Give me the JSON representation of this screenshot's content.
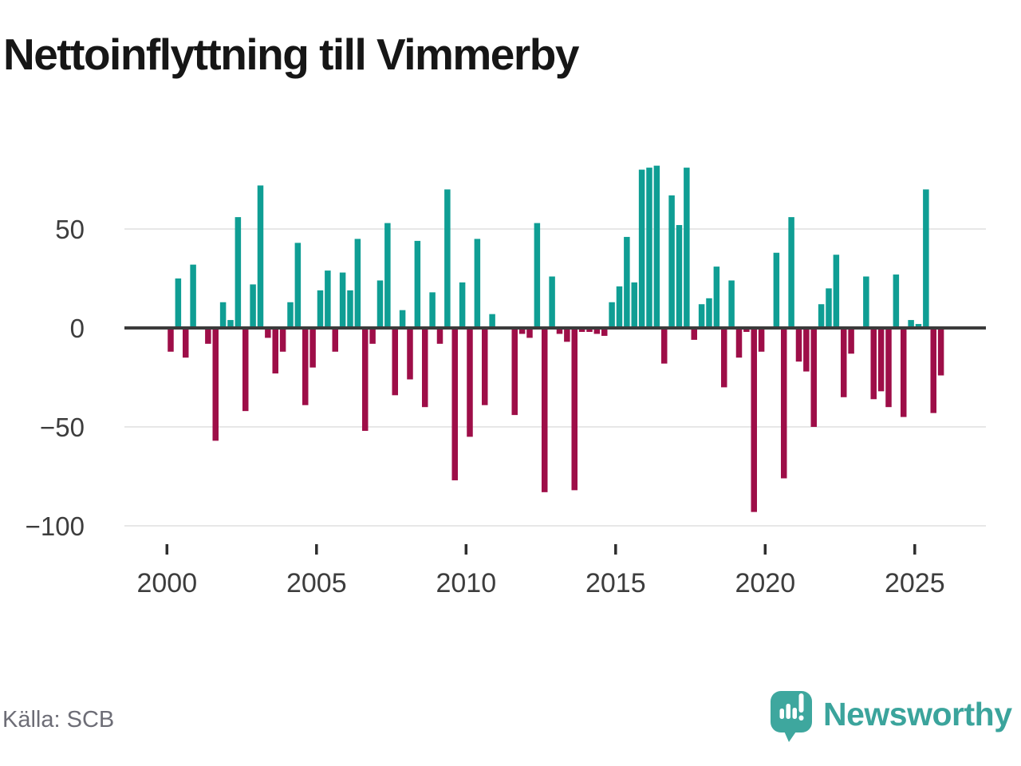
{
  "title": "Nettoinflyttning till Vimmerby",
  "source": "Källa: SCB",
  "branding": {
    "wordmark": "Newsworthy"
  },
  "colors": {
    "positive": "#0F9E94",
    "negative": "#9E0E48",
    "grid": "#E7E7E7",
    "zero_line": "#3B3B3B",
    "tick": "#2E2E2E",
    "axis_text": "#3D3D3D",
    "title_text": "#161616",
    "muted_text": "#6D6D76",
    "logo": "#3EA79E"
  },
  "chart_data": {
    "type": "bar",
    "title": "Nettoinflyttning till Vimmerby",
    "frequency": "quarterly",
    "start": "2000 Q1",
    "end": "2025 Q4",
    "x_ticks": [
      2000,
      2005,
      2010,
      2015,
      2020,
      2025
    ],
    "x_tick_labels": [
      "2000",
      "2005",
      "2010",
      "2015",
      "2020",
      "2025"
    ],
    "y_ticks": [
      50,
      0,
      -50,
      -100
    ],
    "y_tick_labels": [
      "50",
      "0",
      "−50",
      "−100"
    ],
    "ylim": [
      -110,
      90
    ],
    "grid": true,
    "legend_position": "none",
    "series": [
      {
        "name": "Nettoinflyttning",
        "values": [
          -12,
          25,
          -15,
          32,
          0,
          -8,
          -57,
          13,
          4,
          56,
          -42,
          22,
          72,
          -5,
          -23,
          -12,
          13,
          43,
          -39,
          -20,
          19,
          29,
          -12,
          28,
          19,
          45,
          -52,
          -8,
          24,
          53,
          -34,
          9,
          -26,
          44,
          -40,
          18,
          -8,
          70,
          -77,
          23,
          -55,
          45,
          -39,
          7,
          0,
          0,
          -44,
          -3,
          -5,
          53,
          -83,
          26,
          -3,
          -7,
          -82,
          -2,
          -2,
          -3,
          -4,
          13,
          21,
          46,
          23,
          80,
          81,
          82,
          -18,
          67,
          52,
          81,
          -6,
          12,
          15,
          31,
          -30,
          24,
          -15,
          -2,
          -93,
          -12,
          0,
          38,
          -76,
          56,
          -17,
          -22,
          -50,
          12,
          20,
          37,
          -35,
          -13,
          0,
          26,
          -36,
          -32,
          -40,
          27,
          -45,
          4,
          2,
          70,
          -43,
          -24
        ]
      }
    ]
  }
}
